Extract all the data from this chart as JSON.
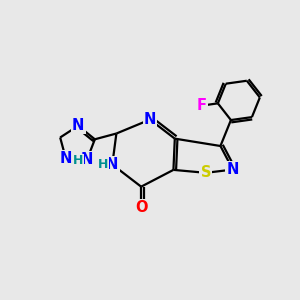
{
  "background_color": "#e8e8e8",
  "atom_colors": {
    "N": "#0000ff",
    "S": "#cccc00",
    "O": "#ff0000",
    "F": "#ff00ff",
    "H": "#009090",
    "C": "#000000"
  },
  "font_size": 10.5,
  "bond_lw": 1.6
}
